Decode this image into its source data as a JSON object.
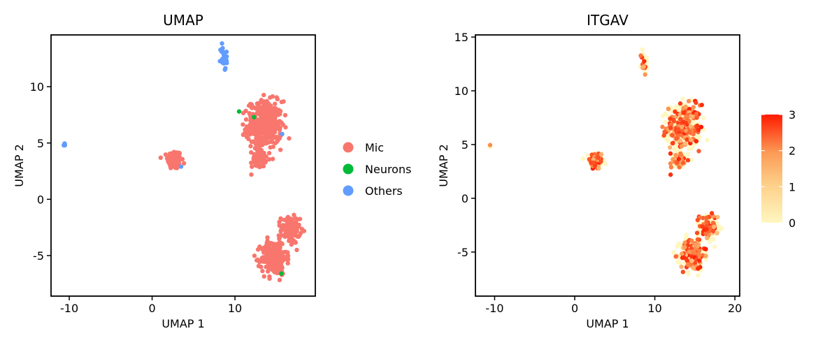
{
  "chart_data": [
    {
      "type": "scatter",
      "title": "UMAP",
      "xlabel": "UMAP 1",
      "ylabel": "UMAP 2",
      "xlim": [
        -12.2,
        19.7
      ],
      "ylim": [
        -8.6,
        14.6
      ],
      "xticks": [
        -10,
        0,
        10
      ],
      "yticks": [
        -5,
        0,
        5,
        10
      ],
      "xtick_labels": [
        "-10",
        "0",
        "10"
      ],
      "ytick_labels": [
        "-5",
        "0",
        "5",
        "10"
      ],
      "grid": false,
      "legend_position": "right",
      "legend": [
        {
          "name": "Mic",
          "color": "#F8766D"
        },
        {
          "name": "Neurons",
          "color": "#00BA38"
        },
        {
          "name": "Others",
          "color": "#619CFF"
        }
      ],
      "clusters": [
        {
          "group": "Mic",
          "label": "cluster near (2.7, 3.5)",
          "center": [
            2.7,
            3.5
          ],
          "spread": [
            0.55,
            0.55
          ],
          "approx_points": 160
        },
        {
          "group": "Mic",
          "label": "cluster near (13.6, 6.6)",
          "center": [
            13.6,
            6.6
          ],
          "spread": [
            1.4,
            1.4
          ],
          "approx_points": 380
        },
        {
          "group": "Mic",
          "label": "tail near (12.9, 3.6)",
          "center": [
            12.9,
            3.6
          ],
          "spread": [
            0.55,
            0.5
          ],
          "approx_points": 70
        },
        {
          "group": "Mic",
          "label": "cluster near (16.7, -2.7)",
          "center": [
            16.7,
            -2.7
          ],
          "spread": [
            0.75,
            0.8
          ],
          "approx_points": 150
        },
        {
          "group": "Mic",
          "label": "cluster near (14.7, -5.2)",
          "center": [
            14.7,
            -5.2
          ],
          "spread": [
            1.0,
            1.0
          ],
          "approx_points": 240
        },
        {
          "group": "Others",
          "label": "strand near (8.7, 12.6)",
          "center": [
            8.7,
            12.6
          ],
          "spread": [
            0.3,
            0.8
          ],
          "approx_points": 25
        },
        {
          "group": "Others",
          "label": "pair near (-10.6, 4.8)",
          "center": [
            -10.6,
            4.8
          ],
          "spread": [
            0.15,
            0.15
          ],
          "approx_points": 5
        }
      ],
      "points": [
        {
          "group": "Neurons",
          "x": 10.5,
          "y": 7.8
        },
        {
          "group": "Neurons",
          "x": 12.3,
          "y": 7.3
        },
        {
          "group": "Neurons",
          "x": 15.6,
          "y": -6.6
        },
        {
          "group": "Others",
          "x": 3.5,
          "y": 2.9
        },
        {
          "group": "Others",
          "x": 15.7,
          "y": 5.8
        }
      ]
    },
    {
      "type": "scatter",
      "title": "ITGAV",
      "xlabel": "UMAP 1",
      "ylabel": "UMAP 2",
      "xlim": [
        -12.4,
        20.6
      ],
      "ylim": [
        -9.1,
        15.2
      ],
      "xticks": [
        -10,
        0,
        10,
        20
      ],
      "yticks": [
        -5,
        0,
        5,
        10,
        15
      ],
      "xtick_labels": [
        "-10",
        "0",
        "10",
        "20"
      ],
      "ytick_labels": [
        "-5",
        "0",
        "5",
        "10",
        "15"
      ],
      "grid": false,
      "color_scale": {
        "min": 0,
        "max": 3,
        "ticks": [
          0,
          1,
          2,
          3
        ],
        "tick_labels": [
          "0",
          "1",
          "2",
          "3"
        ],
        "low_color": "#FFF7C0",
        "mid_color": "#FC9A55",
        "high_color": "#FF1A00"
      },
      "expression_summary": "most cells low (pale yellow); expressing cells scattered orange to red within each cluster, densest in the two large clusters"
    }
  ]
}
